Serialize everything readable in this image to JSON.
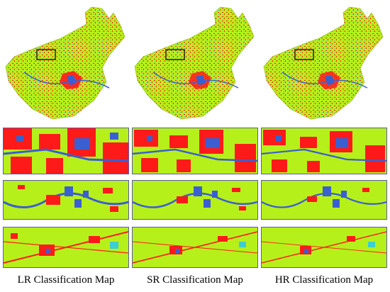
{
  "figure": {
    "columns": [
      {
        "caption": "LR Classification Map"
      },
      {
        "caption": "SR Classification Map"
      },
      {
        "caption": "HR Classification Map"
      }
    ],
    "strips": [
      "urban-detail",
      "river-detail",
      "field-detail"
    ]
  },
  "legend_colors": {
    "vegetation": "#b6f01a",
    "built_up": "#ff1a1a",
    "water": "#3a5fd0",
    "other": "#3ccfcf",
    "frame": "#5a5aa8"
  }
}
